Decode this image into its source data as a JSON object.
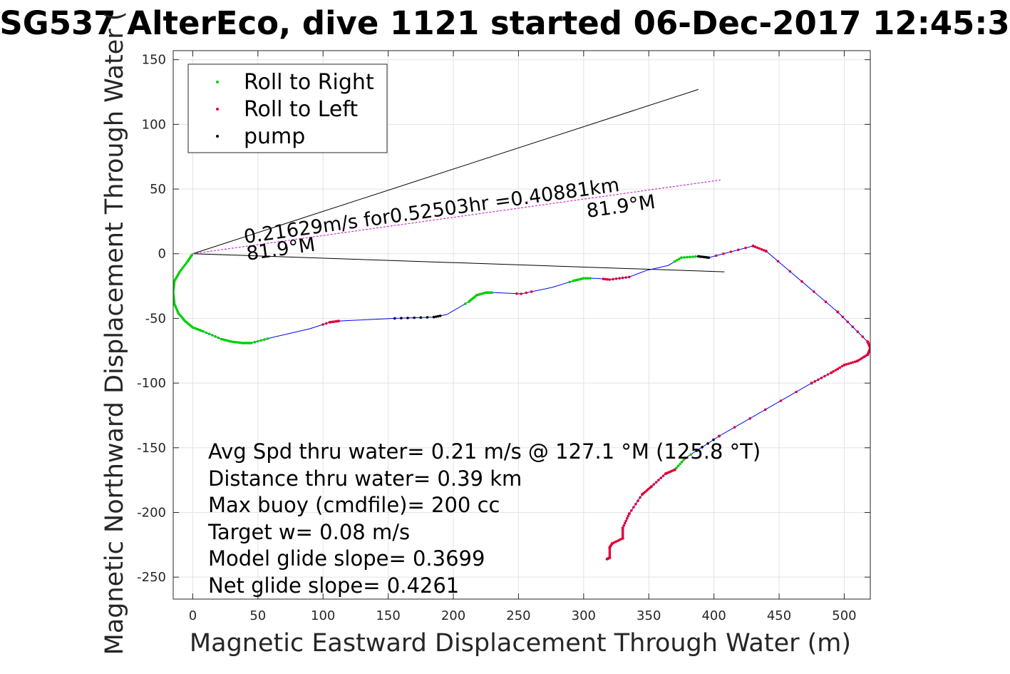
{
  "chart_data": {
    "type": "scatter",
    "title": "SG537 AlterEco, dive 1121 started 06-Dec-2017 12:45:3",
    "xlabel": "Magnetic Eastward Displacement Through Water (m)",
    "ylabel": "Magnetic Northward Displacement Through Water (",
    "xlim": [
      -15,
      520
    ],
    "ylim": [
      -267,
      157
    ],
    "xticks": [
      0,
      50,
      100,
      150,
      200,
      250,
      300,
      350,
      400,
      450,
      500
    ],
    "yticks": [
      150,
      100,
      50,
      0,
      -50,
      -100,
      -150,
      -200,
      -250
    ],
    "grid": true,
    "legend": {
      "placement": "top-left",
      "entries": [
        "Roll to Right",
        "Roll to Left",
        "pump"
      ]
    },
    "colors": {
      "roll_right": "#00d000",
      "roll_left": "#e0003a",
      "pump": "#000000",
      "track": "#0000ff",
      "average": "#cc33cc",
      "reference": "#000000"
    },
    "track": [
      [
        0,
        0
      ],
      [
        -4,
        -6
      ],
      [
        -10,
        -14
      ],
      [
        -14,
        -21
      ],
      [
        -15,
        -30
      ],
      [
        -14,
        -39
      ],
      [
        -11,
        -46
      ],
      [
        -6,
        -52
      ],
      [
        0,
        -57
      ],
      [
        8,
        -60
      ],
      [
        22,
        -66
      ],
      [
        30,
        -68
      ],
      [
        38,
        -69
      ],
      [
        45,
        -69
      ],
      [
        60,
        -65
      ],
      [
        90,
        -58
      ],
      [
        105,
        -53
      ],
      [
        112,
        -52
      ],
      [
        155,
        -50
      ],
      [
        185,
        -49
      ],
      [
        195,
        -47
      ],
      [
        212,
        -37
      ],
      [
        218,
        -32
      ],
      [
        225,
        -30
      ],
      [
        232,
        -30
      ],
      [
        252,
        -31
      ],
      [
        276,
        -26
      ],
      [
        292,
        -21
      ],
      [
        300,
        -19
      ],
      [
        310,
        -19
      ],
      [
        320,
        -20
      ],
      [
        335,
        -18
      ],
      [
        348,
        -13
      ],
      [
        365,
        -9
      ],
      [
        375,
        -3
      ],
      [
        388,
        -2
      ],
      [
        396,
        -3
      ],
      [
        430,
        6
      ],
      [
        440,
        2
      ],
      [
        495,
        -45
      ],
      [
        518,
        -68
      ],
      [
        520,
        -73
      ],
      [
        518,
        -78
      ],
      [
        510,
        -83
      ],
      [
        500,
        -86
      ],
      [
        490,
        -92
      ],
      [
        475,
        -100
      ],
      [
        404,
        -141
      ],
      [
        378,
        -158
      ],
      [
        370,
        -167
      ],
      [
        363,
        -170
      ],
      [
        352,
        -180
      ],
      [
        345,
        -186
      ],
      [
        335,
        -201
      ],
      [
        330,
        -212
      ],
      [
        330,
        -220
      ],
      [
        322,
        -224
      ],
      [
        320,
        -227
      ],
      [
        320,
        -235
      ],
      [
        318,
        -236
      ]
    ],
    "average_line": {
      "start": [
        0,
        0
      ],
      "end": [
        405,
        57
      ]
    },
    "reference_lines": [
      {
        "start": [
          0,
          0
        ],
        "end": [
          388,
          127
        ]
      },
      {
        "start": [
          0,
          0
        ],
        "end": [
          408,
          -14
        ]
      }
    ],
    "annotations": {
      "avg_label": "0.21629m/s for0.52503hr =0.40881km",
      "heading_start": "81.9°M",
      "heading_end": "81.9°M"
    },
    "stats": [
      "Avg Spd thru water=  0.21 m/s @ 127.1 °M (125.8 °T)",
      "Distance thru water=  0.39 km",
      "Max buoy (cmdfile)= 200 cc",
      "Target w= 0.08 m/s",
      "Model glide slope= 0.3699",
      "Net glide slope= 0.4261"
    ]
  }
}
